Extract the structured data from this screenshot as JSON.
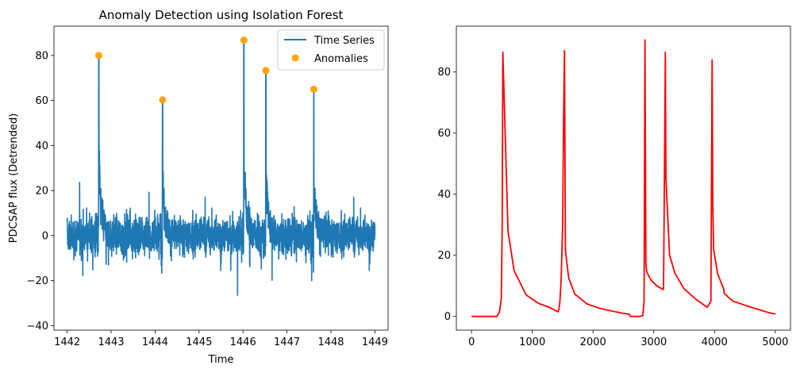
{
  "chart_data": [
    {
      "type": "line",
      "title": "Anomaly Detection using Isolation Forest",
      "xlabel": "Time",
      "ylabel": "PDCSAP flux (Detrended)",
      "xlim": [
        1441.7,
        1449.3
      ],
      "ylim": [
        -42,
        93
      ],
      "xticks": [
        1442,
        1443,
        1444,
        1445,
        1446,
        1447,
        1448,
        1449
      ],
      "yticks": [
        -40,
        -20,
        0,
        20,
        40,
        60,
        80
      ],
      "legend": {
        "placement": "top-right",
        "entries": [
          "Time Series",
          "Anomalies"
        ]
      },
      "series": [
        {
          "name": "Time Series",
          "color": "#1f77b4",
          "x_range": [
            1442.0,
            1449.0
          ]
        },
        {
          "name": "Anomalies",
          "kind": "scatter",
          "color": "#ffa500",
          "x": [
            1442.72,
            1444.17,
            1446.02,
            1446.52,
            1447.61
          ],
          "y": [
            80,
            60.3,
            86.8,
            73.3,
            65
          ]
        }
      ],
      "peaks": [
        {
          "x": 1442.72,
          "y": 80
        },
        {
          "x": 1444.17,
          "y": 60.3
        },
        {
          "x": 1446.02,
          "y": 86.8
        },
        {
          "x": 1446.52,
          "y": 73.3
        },
        {
          "x": 1447.61,
          "y": 65
        }
      ]
    },
    {
      "type": "line",
      "title": "",
      "xlabel": "",
      "ylabel": "",
      "xlim": [
        -250,
        5250
      ],
      "ylim": [
        -4.5,
        95
      ],
      "xticks": [
        0,
        1000,
        2000,
        3000,
        4000,
        5000
      ],
      "yticks": [
        0,
        20,
        40,
        60,
        80
      ],
      "series": [
        {
          "color": "#ff0000",
          "x": [
            0,
            420,
            460,
            490,
            505,
            515,
            600,
            700,
            900,
            1100,
            1300,
            1425,
            1440,
            1455,
            1475,
            1500,
            1515,
            1530,
            1545,
            1560,
            1600,
            1700,
            1900,
            2100,
            2300,
            2500,
            2600,
            2610,
            2780,
            2820,
            2840,
            2855,
            2870,
            2885,
            2950,
            3050,
            3150,
            3160,
            3175,
            3190,
            3200,
            3260,
            3350,
            3500,
            3700,
            3880,
            3940,
            3960,
            3970,
            3985,
            4050,
            4150,
            4160,
            4300,
            4600,
            4900,
            5000
          ],
          "y": [
            0,
            0,
            1.5,
            6,
            30,
            86.5,
            28,
            15,
            7,
            4.3,
            2.8,
            1.5,
            2.5,
            5,
            12,
            30,
            65,
            87,
            22,
            19,
            12.5,
            7.3,
            4.1,
            2.7,
            1.8,
            1,
            0.7,
            0,
            0,
            0.3,
            5,
            90.5,
            17,
            14.5,
            12,
            10,
            8.8,
            9,
            45,
            86.5,
            45,
            20,
            14,
            9,
            5.5,
            3,
            5,
            84,
            38,
            22,
            14,
            9,
            7.5,
            5,
            3,
            1.2,
            0.8
          ]
        }
      ]
    }
  ]
}
